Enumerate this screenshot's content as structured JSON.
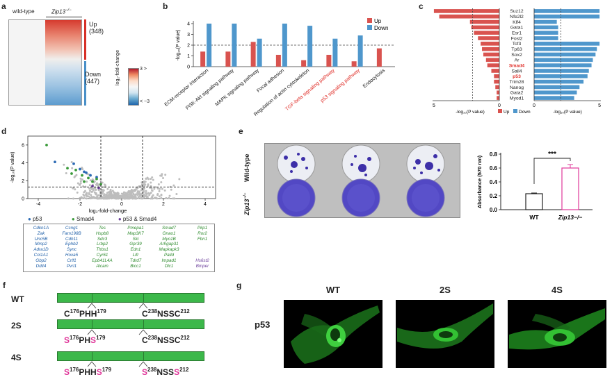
{
  "panels": {
    "a": {
      "label": "a",
      "wild_type": "wild-type",
      "zip13": "Zip13",
      "zip13_sup": "−/−",
      "up_label": "Up",
      "up_count": "(348)",
      "down_label": "Down",
      "down_count": "(447)",
      "scale_max": "3",
      "scale_min": "−3",
      "scale_gt": ">",
      "scale_lt": "<",
      "scale_title": "log₂-fold-change",
      "colors": {
        "up": "#d73027",
        "down": "#4a90c8"
      }
    },
    "b": {
      "label": "b",
      "ylabel": "-log₁₀(P value)",
      "legend_up": "Up",
      "legend_down": "Down"
    },
    "c": {
      "label": "c",
      "left_axis_label": "-log₁₀(P value)",
      "right_axis_label": "-log₁₀(P value)",
      "legend_up": "Up",
      "legend_down": "Down",
      "left_ticks": [
        "5",
        "0"
      ],
      "right_ticks": [
        "0",
        "5"
      ]
    },
    "d": {
      "label": "d",
      "xlabel": "log₂-fold-change",
      "ylabel": "-log₁₀(P value)",
      "legend": [
        "p53",
        "Smad4",
        "p53 & Smad4"
      ],
      "gene_columns": [
        {
          "genes": [
            "Cdkn1A",
            "Zak",
            "Unc5B",
            "Mmp2",
            "Adra1D",
            "Col1A1",
            "Gbp2",
            "Ddit4"
          ],
          "cls": "p53"
        },
        {
          "genes": [
            "Ccng1",
            "Fam198B",
            "Cdh11",
            "Ephb2",
            "Sync",
            "Hoxa5",
            "Crlf1",
            "Pvrl1"
          ],
          "cls": "p53"
        },
        {
          "genes": [
            "Tes",
            "Hspb8",
            "Sdc3",
            "Lrbp2",
            "Thbs1",
            "Cyr61",
            "Epb41L4A",
            "Alcam"
          ],
          "cls": "smad4"
        },
        {
          "genes": [
            "Pmepa1",
            "Map3K7",
            "Ski",
            "Gpr39",
            "Edn1",
            "Lifr",
            "Tdrd7",
            "Bicc1"
          ],
          "cls": "smad4"
        },
        {
          "genes": [
            "Smad7",
            "Gnao1",
            "Myo1B",
            "Arhgap31",
            "Mapkapk3",
            "Palld",
            "Impad1",
            "Dlc1"
          ],
          "cls": "smad4"
        },
        {
          "genes": [
            "Pkp1",
            "Ror2",
            "Fbn1",
            "",
            "",
            "",
            "Hs6st2",
            "Bmper"
          ],
          "cls": "mixed"
        }
      ]
    },
    "e": {
      "label": "e",
      "row1_label": "Wild-type",
      "row2_label": "Zip13",
      "row2_sup": "−/−",
      "ylabel": "Absorbance (570 nm)",
      "significance": "***"
    },
    "f": {
      "label": "f",
      "rows": [
        {
          "name": "WT",
          "left": [
            {
              "t": "C",
              "m": false
            },
            {
              "t": "176",
              "sup": true
            },
            {
              "t": "PHH",
              "m": false
            },
            {
              "t": "179",
              "sup": true
            }
          ],
          "right": [
            {
              "t": "C",
              "m": false
            },
            {
              "t": "238",
              "sup": true
            },
            {
              "t": "NSSC",
              "m": false
            },
            {
              "t": "212",
              "sup": true
            }
          ]
        },
        {
          "name": "2S",
          "left": [
            {
              "t": "S",
              "m": true
            },
            {
              "t": "176",
              "sup": true
            },
            {
              "t": "PH",
              "m": false
            },
            {
              "t": "S",
              "m": true
            },
            {
              "t": "179",
              "sup": true
            }
          ],
          "right": [
            {
              "t": "C",
              "m": false
            },
            {
              "t": "238",
              "sup": true
            },
            {
              "t": "NSSC",
              "m": false
            },
            {
              "t": "212",
              "sup": true
            }
          ]
        },
        {
          "name": "4S",
          "left": [
            {
              "t": "S",
              "m": true
            },
            {
              "t": "176",
              "sup": true
            },
            {
              "t": "PHH",
              "m": false
            },
            {
              "t": "S",
              "m": true
            },
            {
              "t": "179",
              "sup": true
            }
          ],
          "right": [
            {
              "t": "S",
              "m": true
            },
            {
              "t": "238",
              "sup": true
            },
            {
              "t": "NSS",
              "m": false
            },
            {
              "t": "S",
              "m": true
            },
            {
              "t": "212",
              "sup": true
            }
          ]
        }
      ]
    },
    "g": {
      "label": "g",
      "row_label": "p53",
      "titles": [
        "WT",
        "2S",
        "4S"
      ]
    }
  },
  "chart_data": [
    {
      "id": "b",
      "type": "bar",
      "title": "",
      "categories": [
        "ECM-receptor interaction",
        "PI3K-Akt signaling pathway",
        "MAPK signaling pathway",
        "Focal adhesion",
        "Regulation of actin cytoskeleton",
        "TGF-beta signaling pathway",
        "p53 signaling pathway",
        "Endocytosis"
      ],
      "highlight_categories": [
        "TGF-beta signaling pathway",
        "p53 signaling pathway"
      ],
      "series": [
        {
          "name": "Up",
          "values": [
            1.4,
            1.4,
            2.3,
            1.1,
            0.6,
            1.1,
            0.5,
            1.7
          ]
        },
        {
          "name": "Down",
          "values": [
            4.0,
            4.0,
            2.6,
            4.0,
            3.8,
            2.6,
            2.9,
            0
          ]
        }
      ],
      "ylabel": "-log₁₀(P value)",
      "ylim": [
        0,
        4
      ],
      "yticks": [
        "0",
        "1",
        "2",
        "3",
        "4"
      ],
      "threshold": 2
    },
    {
      "id": "c",
      "type": "bar",
      "orientation": "horizontal",
      "categories": [
        "Suz12",
        "Nfe2l2",
        "Klf4",
        "Gata1",
        "Esr1",
        "Fosl2",
        "Tcf3",
        "Tp63",
        "Sox2",
        "Ar",
        "Smad4",
        "Sall4",
        "p53",
        "Trim28",
        "Nanog",
        "Gata2",
        "Myod1"
      ],
      "highlight_categories": [
        "Smad4",
        "p53"
      ],
      "series": [
        {
          "name": "Up",
          "values": [
            4.9,
            4.5,
            2.2,
            2.1,
            1.9,
            1.6,
            1.4,
            1.3,
            1.2,
            1.0,
            0.9,
            0.6,
            0.4,
            0.4,
            0.3,
            0.2,
            0.2
          ]
        },
        {
          "name": "Down",
          "values": [
            4.9,
            4.9,
            1.7,
            1.8,
            1.8,
            1.8,
            4.9,
            4.7,
            4.6,
            4.4,
            4.3,
            4.1,
            4.0,
            3.7,
            3.4,
            3.2,
            3.0
          ]
        }
      ],
      "xlim": [
        0,
        5
      ],
      "threshold": 2
    },
    {
      "id": "d",
      "type": "scatter",
      "xlabel": "log₂-fold-change",
      "ylabel": "-log₁₀(P value)",
      "xlim": [
        -4.5,
        4.5
      ],
      "ylim": [
        0,
        7
      ],
      "xticks": [
        "-4",
        "-2",
        "0",
        "2",
        "4"
      ],
      "yticks": [
        "0",
        "2",
        "4",
        "6"
      ],
      "series": [
        {
          "name": "p53",
          "points": [
            [
              -3.2,
              4.1
            ],
            [
              -2.3,
              3.9
            ],
            [
              -2.0,
              3.3
            ],
            [
              -1.7,
              2.9
            ],
            [
              -1.5,
              2.6
            ],
            [
              -1.2,
              2.4
            ],
            [
              -1.8,
              3.0
            ]
          ]
        },
        {
          "name": "Smad4",
          "points": [
            [
              -2.6,
              3.4
            ],
            [
              -2.2,
              3.2
            ],
            [
              -1.9,
              2.6
            ],
            [
              -1.6,
              2.3
            ],
            [
              -1.4,
              1.9
            ],
            [
              -1.2,
              2.2
            ],
            [
              -1.0,
              1.6
            ],
            [
              -2.4,
              2.8
            ],
            [
              -1.8,
              1.9
            ],
            [
              -3.6,
              6.0
            ]
          ]
        },
        {
          "name": "p53 & Smad4",
          "points": [
            [
              -1.4,
              1.4
            ],
            [
              -1.1,
              1.2
            ]
          ]
        }
      ]
    },
    {
      "id": "e",
      "type": "bar",
      "categories": [
        "WT",
        "Zip13−/−"
      ],
      "values": [
        0.23,
        0.6
      ],
      "errors": [
        0.01,
        0.05
      ],
      "ylabel": "Absorbance (570 nm)",
      "ylim": [
        0,
        0.8
      ],
      "yticks": [
        "0.0",
        "0.2",
        "0.4",
        "0.6",
        "0.8"
      ]
    }
  ]
}
